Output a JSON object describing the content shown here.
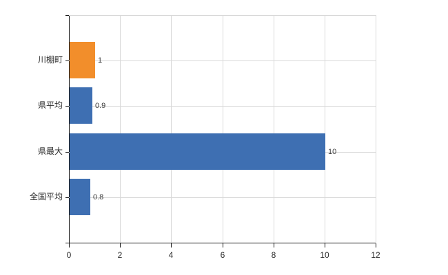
{
  "chart_data": {
    "type": "bar",
    "orientation": "horizontal",
    "categories": [
      "川棚町",
      "県平均",
      "県最大",
      "全国平均"
    ],
    "values": [
      1,
      0.9,
      10,
      0.8
    ],
    "value_labels": [
      "1",
      "0.9",
      "10",
      "0.8"
    ],
    "bar_colors": [
      "#f28e2b",
      "#3e6fb2",
      "#3e6fb2",
      "#3e6fb2"
    ],
    "x_ticks": [
      0,
      2,
      4,
      6,
      8,
      10,
      12
    ],
    "x_tick_labels": [
      "0",
      "2",
      "4",
      "6",
      "8",
      "10",
      "12"
    ],
    "xlim": [
      0,
      12
    ],
    "grid": true,
    "legend": "none"
  },
  "colors": {
    "bar_blue": "#3e6fb2",
    "bar_orange": "#f28e2b",
    "grid": "#d8d8d8",
    "axis": "#1a1a1a",
    "category_text": "#2b2b2b",
    "value_text": "#3c3c3c",
    "background": "#ffffff"
  }
}
